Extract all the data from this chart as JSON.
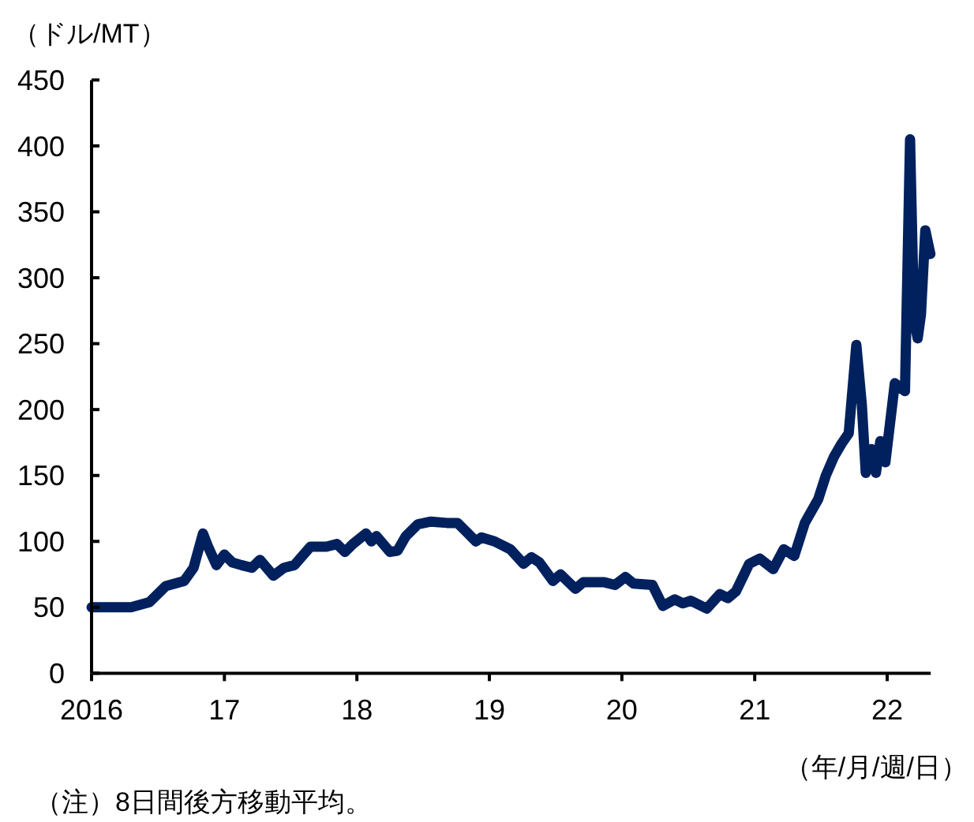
{
  "chart_data": {
    "type": "line",
    "ylabel": "（ドル/MT）",
    "xlabel": "（年/月/週/日）",
    "annotations": [
      "（注）8日間後方移動平均。"
    ],
    "x": [
      "2016-01-01",
      "2016-04-19",
      "2016-06-09",
      "2016-07-23",
      "2016-09-12",
      "2016-10-08",
      "2016-11-03",
      "2016-11-17",
      "2016-12-10",
      "2017-01-01",
      "2017-01-23",
      "2017-02-17",
      "2017-03-18",
      "2017-04-09",
      "2017-05-16",
      "2017-06-14",
      "2017-07-13",
      "2017-08-26",
      "2017-10-09",
      "2017-11-07",
      "2017-11-29",
      "2017-12-21",
      "2018-01-26",
      "2018-02-10",
      "2018-02-24",
      "2018-04-02",
      "2018-04-23",
      "2018-05-16",
      "2018-06-18",
      "2018-07-24",
      "2018-09-06",
      "2018-10-05",
      "2018-10-27",
      "2018-11-25",
      "2018-12-10",
      "2019-01-15",
      "2019-02-28",
      "2019-04-05",
      "2019-04-27",
      "2019-05-19",
      "2019-06-25",
      "2019-07-16",
      "2019-08-26",
      "2019-09-17",
      "2019-11-14",
      "2019-12-13",
      "2020-01-11",
      "2020-02-02",
      "2020-03-25",
      "2020-04-23",
      "2020-05-26",
      "2020-06-17",
      "2020-07-09",
      "2020-08-22",
      "2020-09-27",
      "2020-10-19",
      "2020-11-10",
      "2020-12-17",
      "2021-01-15",
      "2021-02-21",
      "2021-03-22",
      "2021-04-20",
      "2021-05-19",
      "2021-06-25",
      "2021-07-16",
      "2021-08-07",
      "2021-08-28",
      "2021-09-17",
      "2021-10-08",
      "2021-10-23",
      "2021-11-03",
      "2021-11-19",
      "2021-12-01",
      "2021-12-13",
      "2021-12-27",
      "2022-01-22",
      "2022-02-19",
      "2022-03-05",
      "2022-03-16",
      "2022-03-26",
      "2022-04-04",
      "2022-04-16",
      "2022-04-30"
    ],
    "series": [
      {
        "color": "#00215e",
        "values": [
          50,
          50,
          54,
          66,
          70,
          80,
          106,
          96,
          82,
          90,
          84,
          82,
          80,
          86,
          74,
          80,
          82,
          96,
          96,
          98,
          92,
          98,
          106,
          100,
          104,
          92,
          93,
          104,
          113,
          115,
          114,
          114,
          108,
          100,
          103,
          100,
          94,
          83,
          88,
          84,
          70,
          75,
          64,
          69,
          69,
          67,
          73,
          68,
          67,
          51,
          56,
          53,
          55,
          49,
          60,
          57,
          62,
          83,
          87,
          79,
          94,
          89,
          114,
          132,
          150,
          164,
          174,
          182,
          249,
          204,
          152,
          170,
          152,
          176,
          160,
          220,
          214,
          405,
          268,
          254,
          272,
          336,
          318
        ]
      }
    ],
    "xlim": [
      "2016-01-01",
      "2022-05-01"
    ],
    "ylim": [
      0,
      450
    ],
    "xticks": [
      {
        "value": "2016-01-01",
        "label": "2016"
      },
      {
        "value": "2017-01-01",
        "label": "17"
      },
      {
        "value": "2018-01-01",
        "label": "18"
      },
      {
        "value": "2019-01-01",
        "label": "19"
      },
      {
        "value": "2020-01-01",
        "label": "20"
      },
      {
        "value": "2021-01-01",
        "label": "21"
      },
      {
        "value": "2022-01-01",
        "label": "22"
      }
    ],
    "yticks": [
      0,
      50,
      100,
      150,
      200,
      250,
      300,
      350,
      400,
      450
    ],
    "line_style": "solid"
  }
}
